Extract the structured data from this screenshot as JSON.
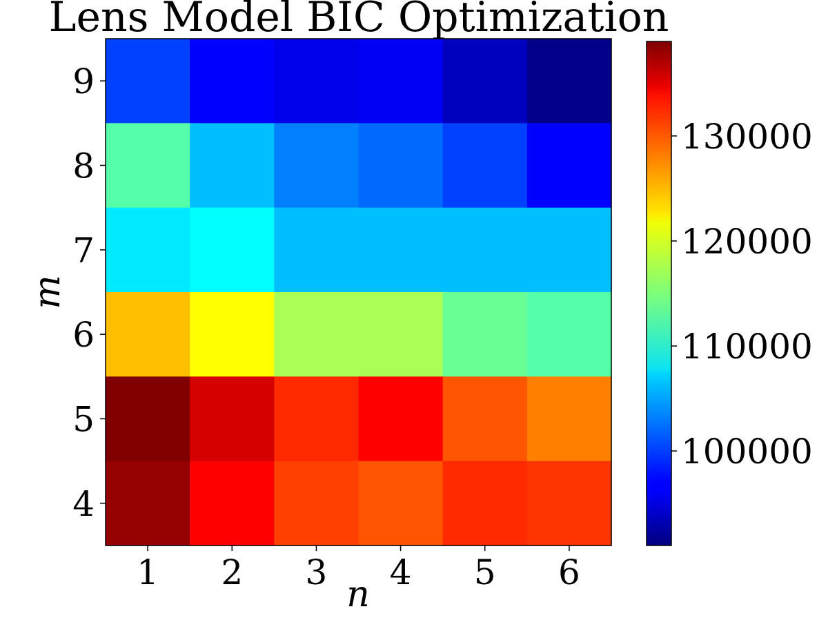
{
  "chart_data": {
    "type": "heatmap",
    "title": "Lens Model BIC Optimization",
    "xlabel": "n",
    "ylabel": "m",
    "x_categories": [
      "1",
      "2",
      "3",
      "4",
      "5",
      "6"
    ],
    "y_categories": [
      "9",
      "8",
      "7",
      "6",
      "5",
      "4"
    ],
    "values": [
      [
        100000,
        97000,
        96000,
        96500,
        94000,
        91500
      ],
      [
        113000,
        106000,
        103000,
        102000,
        100000,
        97000
      ],
      [
        108000,
        109000,
        106000,
        106000,
        106000,
        106000
      ],
      [
        124000,
        121000,
        117000,
        117000,
        114000,
        113000
      ],
      [
        139000,
        135000,
        131000,
        133000,
        129000,
        127000
      ],
      [
        138000,
        133000,
        130000,
        129000,
        131000,
        130500
      ]
    ],
    "colorbar": {
      "colormap": "jet",
      "range": [
        91000,
        139000
      ],
      "ticks": [
        100000,
        110000,
        120000,
        130000
      ],
      "tick_labels": [
        "100000",
        "110000",
        "120000",
        "130000"
      ]
    },
    "grid": false
  }
}
